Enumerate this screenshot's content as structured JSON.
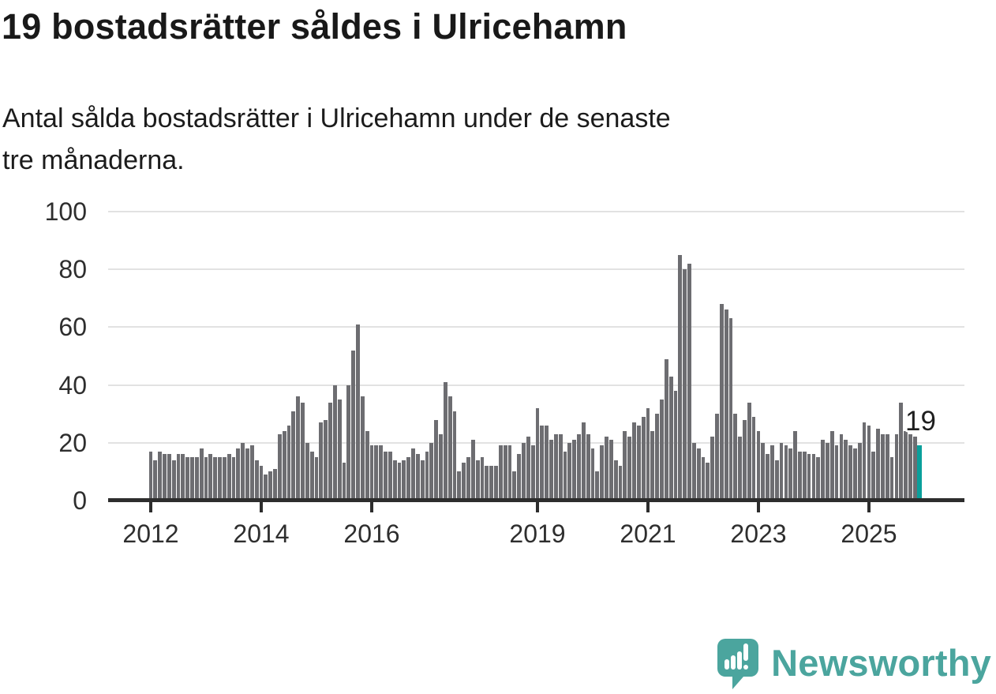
{
  "header": {
    "title": "19 bostadsrätter såldes i Ulricehamn",
    "subtitle_line1": "Antal sålda bostadsrätter i Ulricehamn under de senaste",
    "subtitle_line2": "tre månaderna."
  },
  "chart_data": {
    "type": "bar",
    "title": "19 bostadsrätter såldes i Ulricehamn",
    "subtitle": "Antal sålda bostadsrätter i Ulricehamn under de senaste tre månaderna.",
    "frequency": "monthly",
    "x_start": "2012-01",
    "x_end": "2025-12",
    "values": [
      17,
      14,
      17,
      16,
      16,
      14,
      16,
      16,
      15,
      15,
      15,
      18,
      15,
      16,
      15,
      15,
      15,
      16,
      15,
      18,
      20,
      18,
      19,
      14,
      12,
      9,
      10,
      11,
      23,
      24,
      26,
      31,
      36,
      34,
      20,
      17,
      15,
      27,
      28,
      34,
      40,
      35,
      13,
      40,
      52,
      61,
      36,
      24,
      19,
      19,
      19,
      17,
      17,
      14,
      13,
      14,
      15,
      18,
      16,
      14,
      17,
      20,
      28,
      23,
      41,
      36,
      31,
      10,
      13,
      15,
      21,
      14,
      15,
      12,
      12,
      12,
      19,
      19,
      19,
      10,
      16,
      20,
      22,
      19,
      32,
      26,
      26,
      21,
      23,
      23,
      17,
      20,
      21,
      23,
      27,
      23,
      18,
      10,
      19,
      22,
      21,
      14,
      12,
      24,
      22,
      27,
      26,
      29,
      32,
      24,
      30,
      35,
      49,
      43,
      38,
      85,
      80,
      82,
      20,
      18,
      15,
      13,
      22,
      30,
      68,
      66,
      63,
      30,
      22,
      28,
      34,
      29,
      24,
      20,
      16,
      19,
      14,
      20,
      19,
      18,
      24,
      17,
      17,
      16,
      16,
      15,
      21,
      20,
      24,
      19,
      23,
      21,
      19,
      18,
      20,
      27,
      26,
      17,
      25,
      23,
      23,
      15,
      23,
      34,
      24,
      23,
      22,
      19
    ],
    "ylim": [
      0,
      100
    ],
    "yticks": [
      0,
      20,
      40,
      60,
      80,
      100
    ],
    "xticks": [
      2012,
      2014,
      2016,
      2019,
      2021,
      2023,
      2025
    ],
    "grid": "horizontal",
    "legend": "none",
    "bar_color": "#6d6d71",
    "highlight": {
      "index": 167,
      "value": 19,
      "label": "19",
      "color": "#0a9f9b"
    }
  },
  "footer": {
    "brand": "Newsworthy",
    "brand_color": "#4ba59e"
  }
}
